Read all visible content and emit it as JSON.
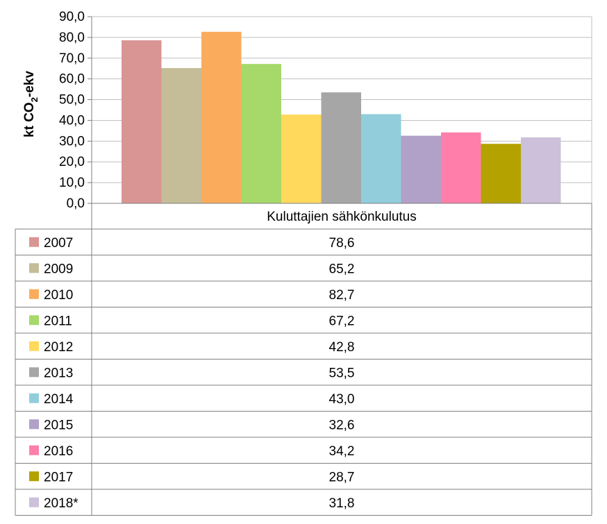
{
  "chart_data": {
    "type": "bar",
    "ylabel_main": "kt CO",
    "ylabel_sub": "2",
    "ylabel_tail": "-ekv",
    "ylim": [
      0,
      90
    ],
    "yticks": [
      "0,0",
      "10,0",
      "20,0",
      "30,0",
      "40,0",
      "50,0",
      "60,0",
      "70,0",
      "80,0",
      "90,0"
    ],
    "grid": true,
    "legend": "data-table",
    "category": "Kuluttajien sähkönkulutus",
    "series": [
      {
        "name": "2007",
        "value": 78.6,
        "label": "78,6",
        "color": "#D99594"
      },
      {
        "name": "2009",
        "value": 65.2,
        "label": "65,2",
        "color": "#C4BD97"
      },
      {
        "name": "2010",
        "value": 82.7,
        "label": "82,7",
        "color": "#FAAC5C"
      },
      {
        "name": "2011",
        "value": 67.2,
        "label": "67,2",
        "color": "#A6D96A"
      },
      {
        "name": "2012",
        "value": 42.8,
        "label": "42,8",
        "color": "#FFD95C"
      },
      {
        "name": "2013",
        "value": 53.5,
        "label": "53,5",
        "color": "#A6A6A6"
      },
      {
        "name": "2014",
        "value": 43.0,
        "label": "43,0",
        "color": "#92CDDC"
      },
      {
        "name": "2015",
        "value": 32.6,
        "label": "32,6",
        "color": "#B1A0C7"
      },
      {
        "name": "2016",
        "value": 34.2,
        "label": "34,2",
        "color": "#FF7FAA"
      },
      {
        "name": "2017",
        "value": 28.7,
        "label": "28,7",
        "color": "#B3A200"
      },
      {
        "name": "2018*",
        "value": 31.8,
        "label": "31,8",
        "color": "#CCC0DA"
      }
    ]
  }
}
